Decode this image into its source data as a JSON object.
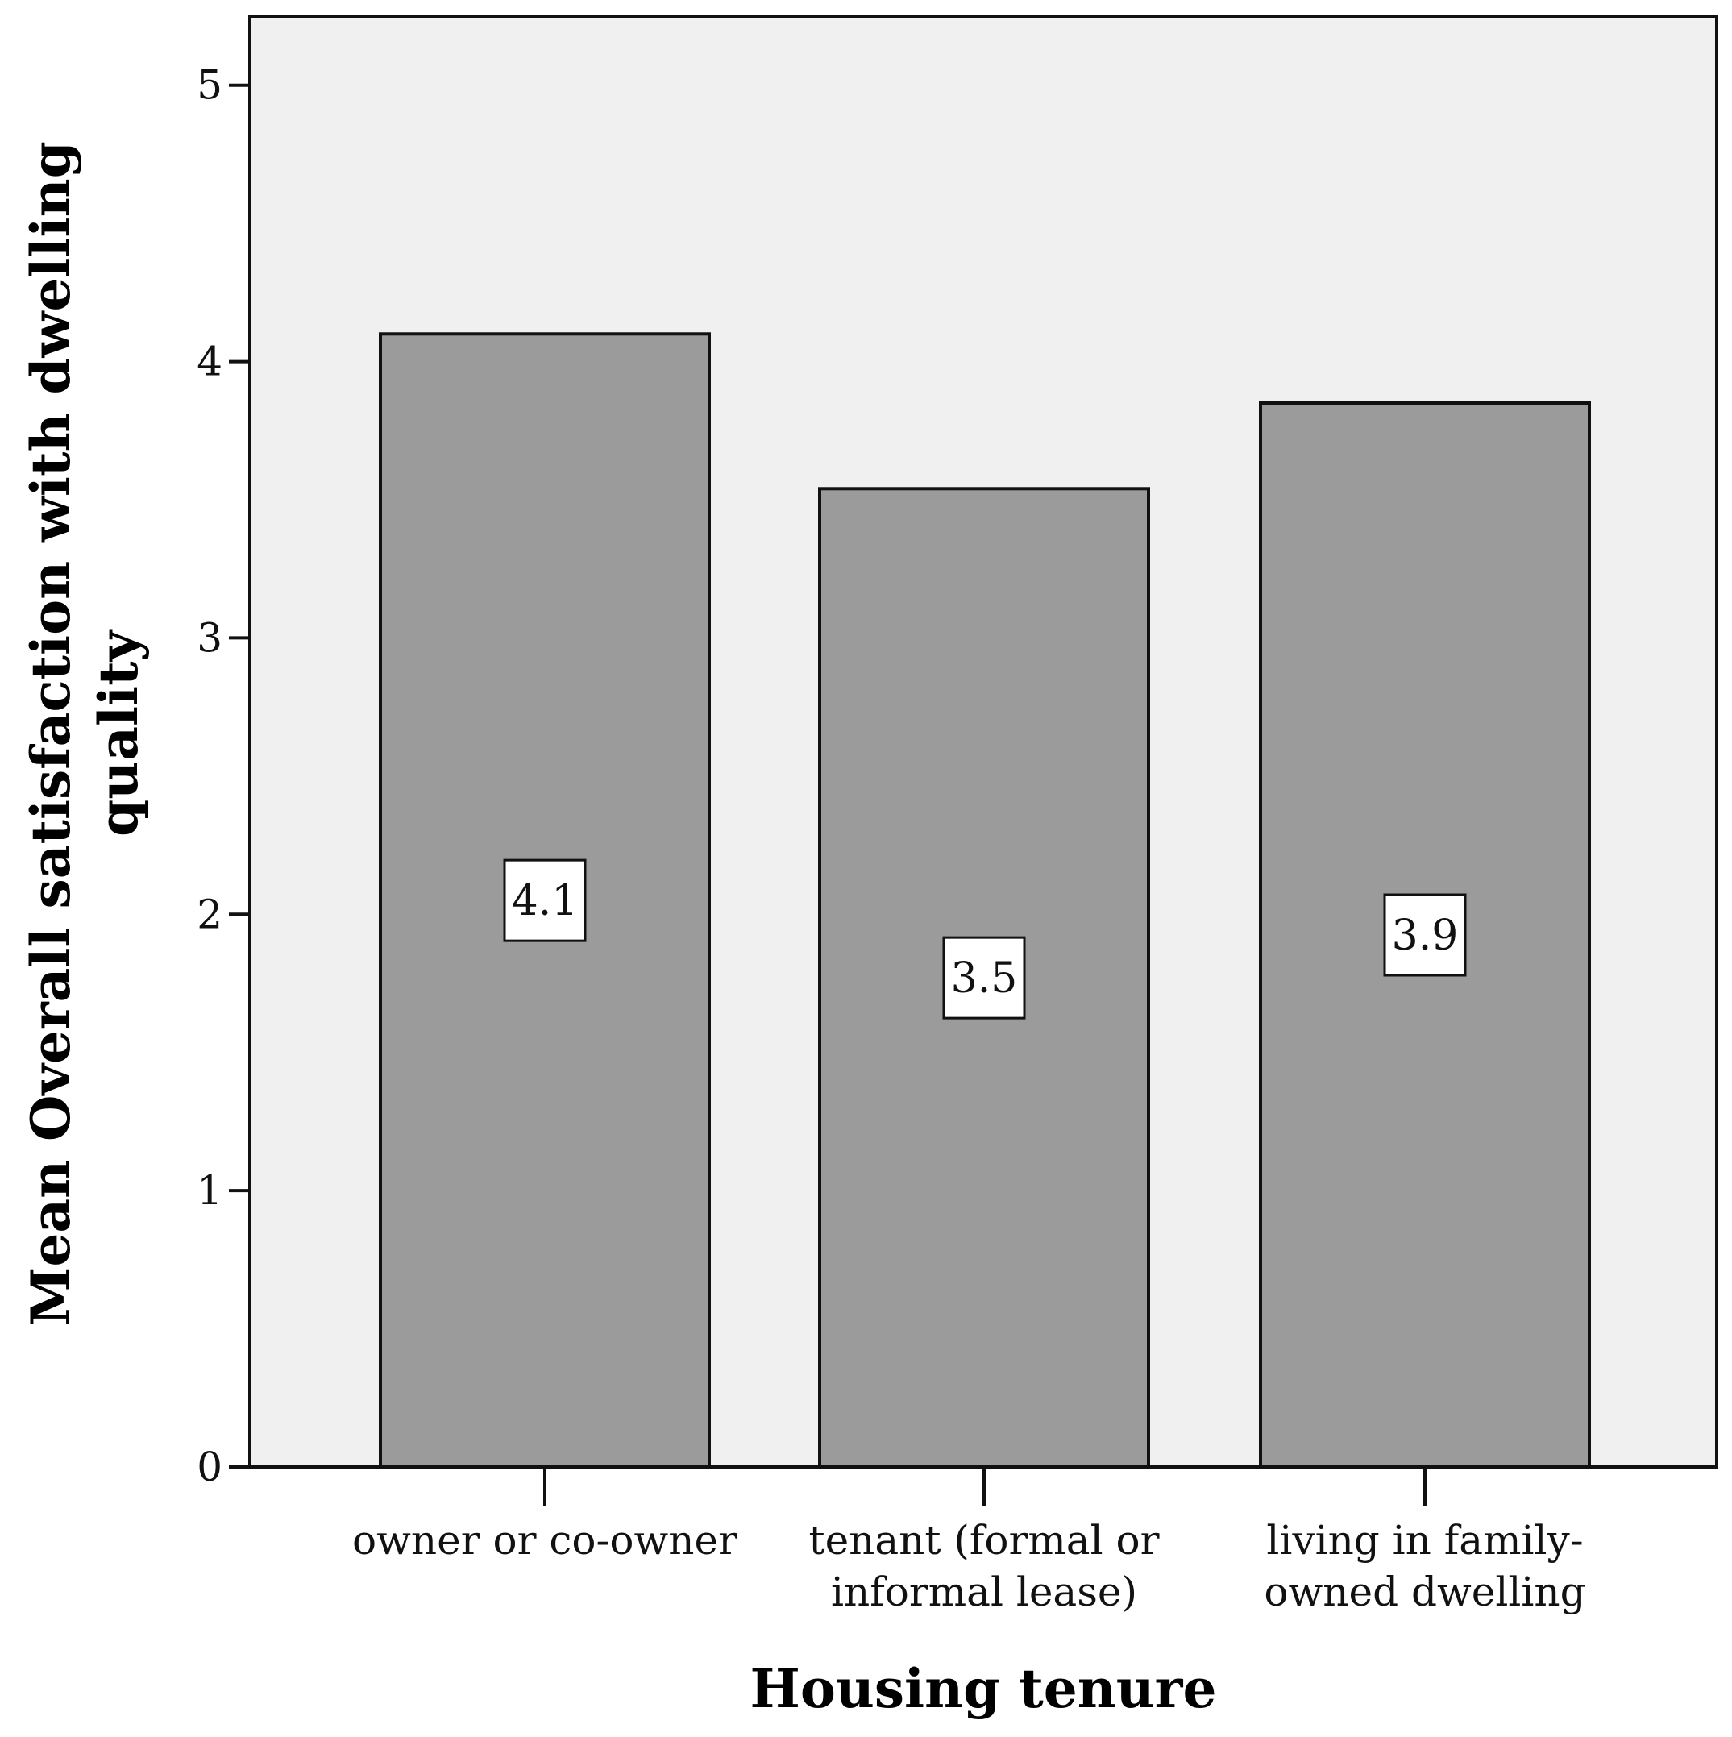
{
  "chart_data": {
    "type": "bar",
    "categories": [
      [
        "owner or co-owner"
      ],
      [
        "tenant (formal or",
        "informal lease)"
      ],
      [
        "living in family-",
        "owned dwelling"
      ]
    ],
    "values": [
      4.1,
      3.54,
      3.85
    ],
    "data_labels": [
      "4.1",
      "3.5",
      "3.9"
    ],
    "xlabel": "Housing tenure",
    "ylabel": [
      "Mean Overall satisfaction with dwelling",
      "quality"
    ],
    "ylim": [
      0,
      5.25
    ],
    "yticks": [
      0,
      1,
      2,
      3,
      4,
      5
    ],
    "grid": false,
    "colors": {
      "plot_background": "#f0f0f0",
      "bar_fill": "#9b9b9b",
      "bar_stroke": "#111111",
      "label_box": "#ffffff"
    }
  }
}
